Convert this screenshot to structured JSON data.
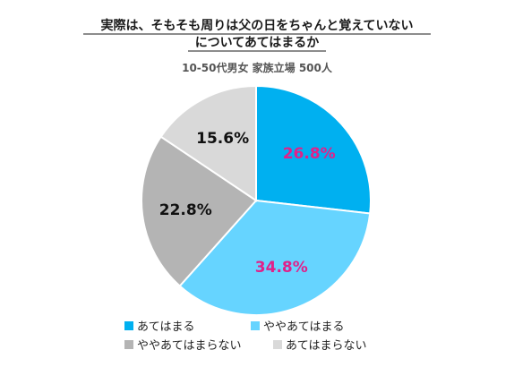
{
  "chart_data": {
    "type": "pie",
    "title_lines": [
      "実際は、そもそも周りは父の日をちゃんと覚えていない",
      "についてあてはまるか"
    ],
    "subtitle": "10-50代男女 家族立場 500人",
    "categories": [
      "あてはまる",
      "ややあてはまる",
      "ややあてはまらない",
      "あてはまらない"
    ],
    "values": [
      26.8,
      34.8,
      22.8,
      15.6
    ],
    "labels": [
      "26.8%",
      "34.8%",
      "22.8%",
      "15.6%"
    ],
    "colors": [
      "#00B0F0",
      "#66D4FF",
      "#B4B4B4",
      "#D9D9D9"
    ],
    "label_colors": [
      "#E0218A",
      "#E0218A",
      "#111111",
      "#111111"
    ],
    "legend_position": "bottom"
  }
}
